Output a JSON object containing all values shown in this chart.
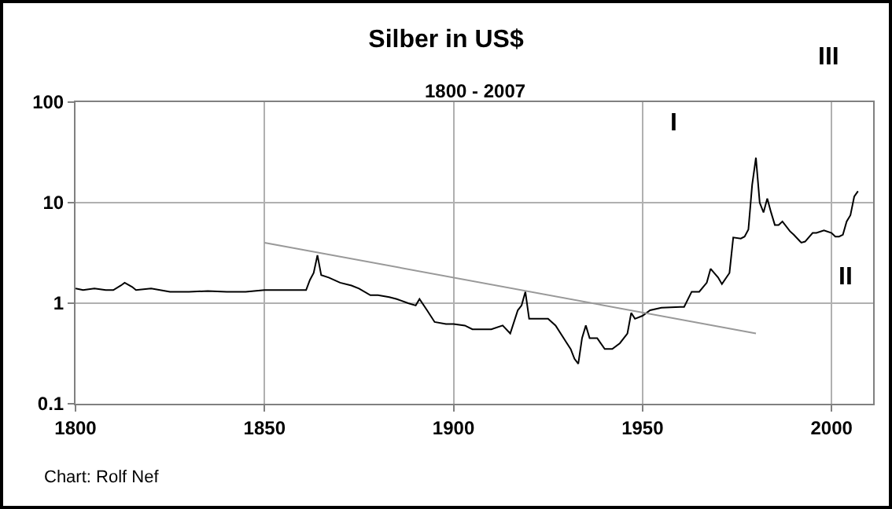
{
  "chart_data": {
    "type": "line",
    "title": "Silber in US$",
    "subtitle": "1800 - 2007",
    "annotations": [
      "I",
      "II",
      "III",
      "Chart: Rolf Nef"
    ],
    "series": [
      {
        "color": "#000000",
        "x": [
          1800,
          1802,
          1805,
          1808,
          1810,
          1812,
          1813,
          1815,
          1816,
          1820,
          1825,
          1830,
          1835,
          1840,
          1845,
          1850,
          1855,
          1860,
          1861,
          1862,
          1863,
          1864,
          1865,
          1867,
          1870,
          1873,
          1875,
          1878,
          1880,
          1883,
          1885,
          1888,
          1890,
          1891,
          1893,
          1895,
          1898,
          1900,
          1903,
          1905,
          1908,
          1910,
          1913,
          1915,
          1917,
          1918,
          1919,
          1920,
          1922,
          1925,
          1927,
          1930,
          1931,
          1932,
          1933,
          1934,
          1935,
          1936,
          1938,
          1940,
          1942,
          1944,
          1946,
          1947,
          1948,
          1950,
          1952,
          1955,
          1960,
          1961,
          1963,
          1965,
          1967,
          1968,
          1970,
          1971,
          1973,
          1974,
          1976,
          1977,
          1978,
          1979,
          1980,
          1981,
          1982,
          1983,
          1984,
          1985,
          1986,
          1987,
          1989,
          1990,
          1992,
          1993,
          1995,
          1996,
          1998,
          2000,
          2001,
          2002,
          2003,
          2004,
          2005,
          2006,
          2007
        ],
        "values": [
          1.4,
          1.35,
          1.4,
          1.35,
          1.35,
          1.5,
          1.6,
          1.45,
          1.35,
          1.4,
          1.3,
          1.3,
          1.32,
          1.3,
          1.3,
          1.35,
          1.35,
          1.35,
          1.35,
          1.7,
          2.0,
          3.0,
          1.9,
          1.8,
          1.6,
          1.5,
          1.4,
          1.2,
          1.2,
          1.15,
          1.1,
          1.0,
          0.95,
          1.1,
          0.85,
          0.65,
          0.62,
          0.62,
          0.6,
          0.55,
          0.55,
          0.55,
          0.6,
          0.5,
          0.85,
          0.95,
          1.3,
          0.7,
          0.7,
          0.7,
          0.6,
          0.4,
          0.35,
          0.28,
          0.25,
          0.45,
          0.6,
          0.45,
          0.45,
          0.35,
          0.35,
          0.4,
          0.5,
          0.8,
          0.7,
          0.75,
          0.85,
          0.9,
          0.92,
          0.92,
          1.3,
          1.3,
          1.6,
          2.2,
          1.8,
          1.55,
          2.0,
          4.5,
          4.4,
          4.6,
          5.4,
          15,
          28,
          10,
          8,
          11,
          8,
          6,
          6,
          6.5,
          5.2,
          4.8,
          4,
          4.1,
          5,
          5,
          5.3,
          5,
          4.6,
          4.6,
          4.8,
          6.5,
          7.5,
          11.5,
          13
        ]
      },
      {
        "type": "line",
        "color": "#999999",
        "x": [
          1850,
          1980
        ],
        "values": [
          4,
          0.5
        ]
      }
    ],
    "xlim": [
      1800,
      2011
    ],
    "xticks": [
      1800,
      1850,
      1900,
      1950,
      2000
    ],
    "ylim": [
      0.1,
      100
    ],
    "yticks": [
      0.1,
      1,
      10,
      100
    ],
    "log": true,
    "grid": true,
    "marker": "none",
    "line_style": "solid"
  }
}
